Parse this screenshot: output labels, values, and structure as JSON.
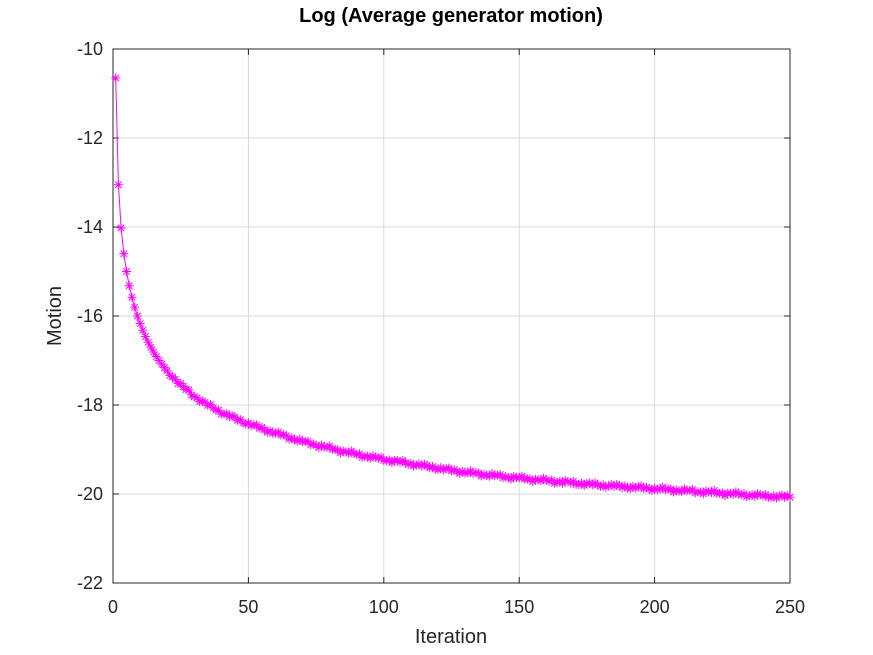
{
  "chart_data": {
    "type": "line",
    "title": "Log (Average generator motion)",
    "xlabel": "Iteration",
    "ylabel": "Motion",
    "xlim": [
      0,
      250
    ],
    "ylim": [
      -22,
      -10
    ],
    "x_ticks": [
      "0",
      "50",
      "100",
      "150",
      "200",
      "250"
    ],
    "y_ticks": [
      "-10",
      "-12",
      "-14",
      "-16",
      "-18",
      "-20",
      "-22"
    ],
    "grid": true,
    "legend": "none",
    "marker": "asterisk",
    "line_color": "#ff00ff",
    "series": [
      {
        "x": [
          1,
          2,
          3,
          4,
          5,
          6,
          7,
          8,
          9,
          10,
          11,
          12,
          13,
          14,
          15,
          16,
          17,
          18,
          19,
          20,
          25,
          30,
          35,
          40,
          45,
          50,
          55,
          60,
          70,
          80,
          90,
          100,
          110,
          120,
          130,
          140,
          150,
          160,
          170,
          180,
          190,
          200,
          210,
          220,
          230,
          240,
          250
        ],
        "values": [
          -10.65,
          -13.05,
          -14.02,
          -14.6,
          -15.0,
          -15.32,
          -15.58,
          -15.8,
          -16.0,
          -16.17,
          -16.32,
          -16.46,
          -16.59,
          -16.7,
          -16.81,
          -16.91,
          -17.0,
          -17.08,
          -17.16,
          -17.23,
          -17.55,
          -17.8,
          -18.0,
          -18.16,
          -18.3,
          -18.42,
          -18.53,
          -18.63,
          -18.82,
          -18.97,
          -19.11,
          -19.22,
          -19.32,
          -19.42,
          -19.51,
          -19.58,
          -19.64,
          -19.7,
          -19.75,
          -19.8,
          -19.84,
          -19.88,
          -19.92,
          -19.96,
          -20.0,
          -20.04,
          -20.07
        ]
      }
    ]
  }
}
